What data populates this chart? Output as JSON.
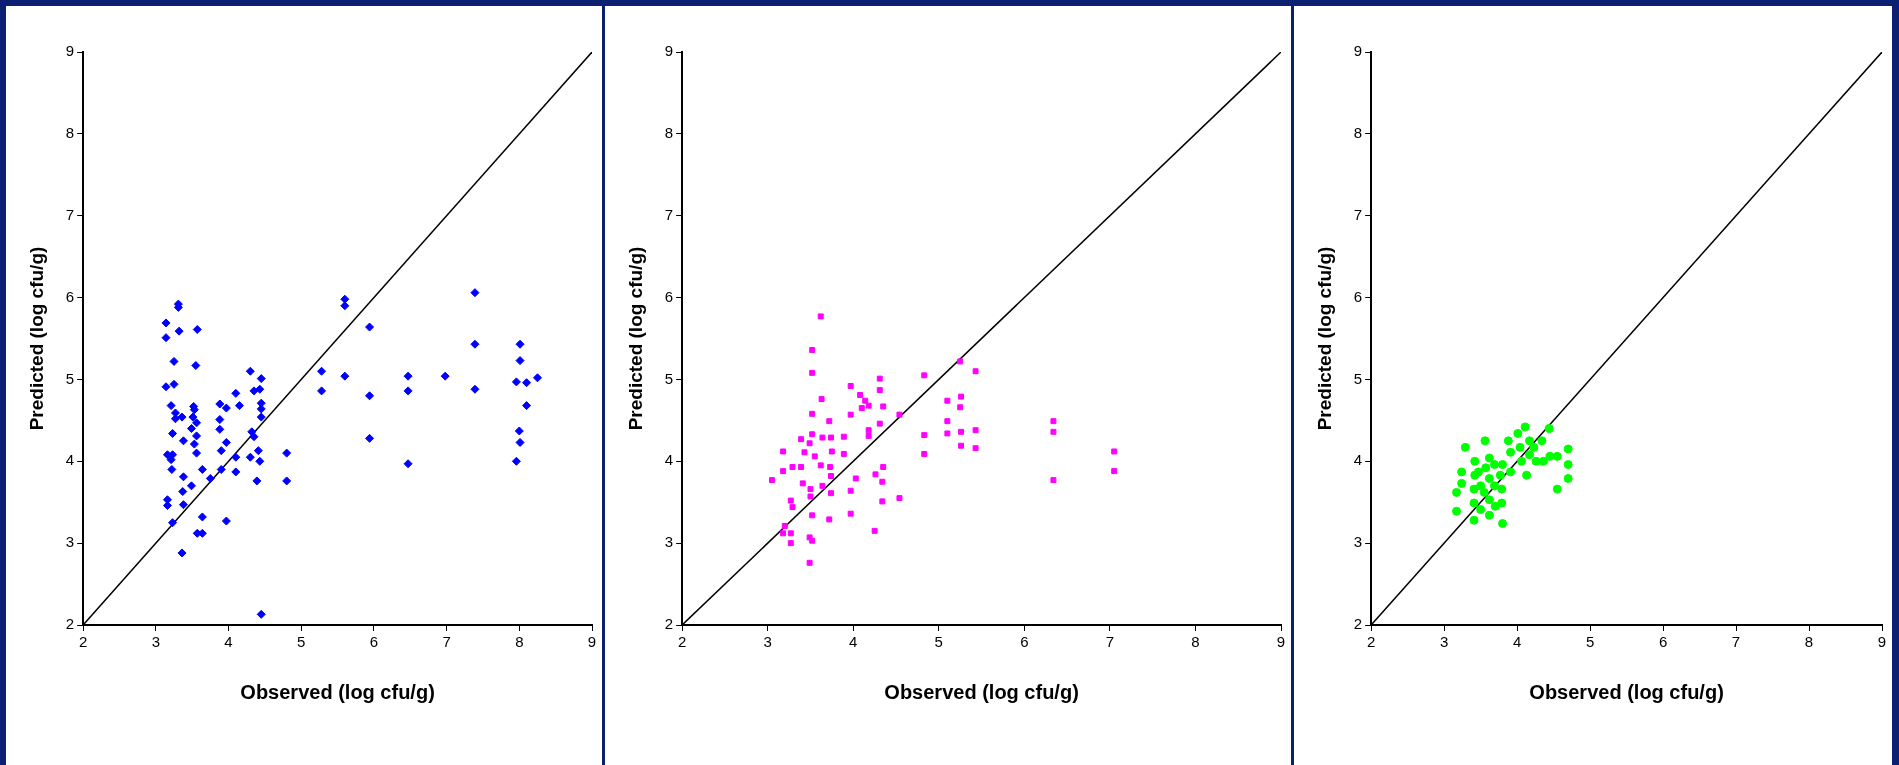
{
  "chart_data": [
    {
      "type": "scatter",
      "xlabel": "Observed (log cfu/g)",
      "ylabel": "Predicted (log cfu/g)",
      "xlim": [
        2,
        9
      ],
      "ylim": [
        2,
        9
      ],
      "xticks": [
        2,
        3,
        4,
        5,
        6,
        7,
        8,
        9
      ],
      "yticks": [
        2,
        3,
        4,
        5,
        6,
        7,
        8,
        9
      ],
      "grid": false,
      "legend": false,
      "marker": "diamond",
      "series": [
        {
          "type": "scatter",
          "color": "#0000ff",
          "x": [
            3.14,
            3.14,
            3.31,
            3.31,
            3.32,
            3.57,
            3.25,
            3.55,
            3.14,
            3.25,
            3.21,
            3.27,
            3.27,
            3.36,
            3.23,
            3.52,
            3.53,
            3.51,
            3.56,
            3.49,
            3.56,
            3.53,
            3.56,
            3.38,
            3.16,
            3.23,
            3.21,
            3.22,
            3.38,
            3.37,
            3.49,
            3.16,
            3.16,
            3.38,
            3.64,
            3.75,
            3.23,
            3.64,
            3.57,
            3.64,
            3.36,
            3.88,
            3.97,
            3.88,
            3.88,
            3.97,
            3.9,
            3.9,
            3.97,
            4.1,
            4.15,
            4.1,
            4.1,
            4.3,
            4.35,
            4.43,
            4.45,
            4.45,
            4.45,
            4.45,
            4.32,
            4.35,
            4.41,
            4.3,
            4.43,
            4.39,
            4.45,
            4.8,
            4.8,
            5.28,
            5.28,
            5.6,
            5.6,
            5.6,
            5.94,
            5.94,
            5.94,
            6.47,
            6.47,
            6.47,
            6.98,
            7.39,
            7.39,
            7.39,
            8.01,
            8.01,
            7.96,
            8.1,
            8.25,
            8.1,
            8.0,
            8.01,
            7.96
          ],
          "values": [
            5.69,
            5.51,
            5.92,
            5.88,
            5.59,
            5.61,
            5.22,
            5.17,
            4.91,
            4.94,
            4.68,
            4.59,
            4.52,
            4.54,
            4.34,
            4.67,
            4.63,
            4.54,
            4.47,
            4.4,
            4.31,
            4.21,
            4.1,
            4.25,
            4.08,
            4.08,
            4.02,
            3.9,
            3.81,
            3.63,
            3.7,
            3.53,
            3.46,
            3.47,
            3.9,
            3.79,
            3.25,
            3.32,
            3.12,
            3.12,
            2.88,
            4.7,
            4.65,
            4.51,
            4.39,
            4.23,
            4.13,
            3.9,
            3.27,
            4.83,
            4.68,
            4.05,
            3.87,
            5.1,
            4.86,
            4.88,
            5.01,
            4.71,
            4.64,
            4.54,
            4.36,
            4.3,
            4.13,
            4.05,
            4.0,
            3.76,
            2.13,
            4.1,
            3.76,
            5.1,
            4.86,
            5.98,
            5.9,
            5.04,
            5.64,
            4.8,
            4.28,
            5.04,
            4.86,
            3.97,
            5.04,
            6.06,
            5.43,
            4.88,
            5.43,
            5.23,
            4.97,
            4.96,
            5.02,
            4.68,
            4.37,
            4.23,
            4.0
          ]
        },
        {
          "type": "line",
          "color": "#000000",
          "marker": "none",
          "x": [
            2,
            9
          ],
          "values": [
            2,
            9
          ]
        }
      ]
    },
    {
      "type": "scatter",
      "xlabel": "Observed (log cfu/g)",
      "ylabel": "Predicted (log cfu/g)",
      "xlim": [
        2,
        9
      ],
      "ylim": [
        2,
        9
      ],
      "xticks": [
        2,
        3,
        4,
        5,
        6,
        7,
        8,
        9
      ],
      "yticks": [
        2,
        3,
        4,
        5,
        6,
        7,
        8,
        9
      ],
      "grid": false,
      "legend": false,
      "marker": "square",
      "series": [
        {
          "type": "scatter",
          "color": "#ff00ff",
          "x": [
            3.62,
            3.52,
            3.52,
            3.63,
            3.52,
            3.72,
            3.39,
            3.18,
            3.49,
            3.52,
            3.64,
            3.74,
            3.75,
            3.43,
            3.55,
            3.62,
            3.39,
            3.29,
            3.18,
            3.05,
            3.41,
            3.5,
            3.5,
            3.64,
            3.73,
            3.74,
            3.74,
            3.27,
            3.29,
            3.52,
            3.72,
            3.2,
            3.27,
            3.18,
            3.27,
            3.49,
            3.52,
            3.49,
            3.89,
            3.89,
            3.97,
            3.97,
            4.08,
            4.14,
            4.18,
            4.1,
            4.18,
            4.18,
            4.31,
            4.31,
            4.35,
            4.31,
            4.54,
            4.03,
            3.97,
            3.97,
            4.26,
            4.35,
            4.34,
            4.34,
            4.25,
            4.54,
            4.83,
            4.83,
            4.83,
            5.1,
            5.1,
            5.1,
            5.25,
            5.26,
            5.25,
            5.26,
            5.26,
            5.43,
            5.43,
            5.43,
            6.34,
            6.34,
            6.34,
            7.05,
            7.05
          ],
          "values": [
            5.77,
            5.36,
            5.08,
            4.76,
            4.58,
            4.49,
            4.27,
            4.12,
            4.22,
            4.33,
            4.29,
            4.29,
            4.12,
            4.11,
            4.06,
            3.95,
            3.93,
            3.93,
            3.88,
            3.77,
            3.73,
            3.66,
            3.57,
            3.7,
            3.93,
            3.82,
            3.61,
            3.52,
            3.44,
            3.34,
            3.29,
            3.21,
            3.12,
            3.12,
            3.0,
            3.07,
            3.03,
            2.76,
            4.3,
            4.09,
            4.92,
            4.57,
            4.81,
            4.74,
            4.68,
            4.65,
            4.38,
            4.31,
            5.01,
            4.87,
            4.67,
            4.46,
            4.57,
            3.79,
            3.64,
            3.36,
            3.84,
            3.93,
            3.75,
            3.51,
            3.15,
            3.55,
            5.05,
            4.32,
            4.09,
            4.74,
            4.49,
            4.34,
            5.22,
            4.79,
            4.66,
            4.36,
            4.19,
            5.1,
            4.38,
            4.16,
            4.49,
            4.36,
            3.77,
            4.12,
            3.88
          ]
        },
        {
          "type": "line",
          "color": "#000000",
          "marker": "none",
          "x": [
            2,
            9
          ],
          "values": [
            2,
            9
          ]
        }
      ]
    },
    {
      "type": "scatter",
      "xlabel": "Observed (log cfu/g)",
      "ylabel": "Predicted (log cfu/g)",
      "xlim": [
        2,
        9
      ],
      "ylim": [
        2,
        9
      ],
      "xticks": [
        2,
        3,
        4,
        5,
        6,
        7,
        8,
        9
      ],
      "yticks": [
        2,
        3,
        4,
        5,
        6,
        7,
        8,
        9
      ],
      "grid": false,
      "legend": false,
      "marker": "circle",
      "series": [
        {
          "type": "scatter",
          "color": "#00ff00",
          "x": [
            3.17,
            3.17,
            3.24,
            3.24,
            3.29,
            3.56,
            3.42,
            3.42,
            3.41,
            3.41,
            3.41,
            3.47,
            3.5,
            3.5,
            3.55,
            3.57,
            3.62,
            3.62,
            3.62,
            3.62,
            3.69,
            3.69,
            3.7,
            3.77,
            3.79,
            3.79,
            3.8,
            3.8,
            3.88,
            3.91,
            3.91,
            4.01,
            4.04,
            4.06,
            4.11,
            4.13,
            4.17,
            4.17,
            4.23,
            4.26,
            4.34,
            4.36,
            4.44,
            4.45,
            4.55,
            4.55,
            4.7,
            4.7,
            4.7
          ],
          "values": [
            3.62,
            3.39,
            3.87,
            3.73,
            4.17,
            4.25,
            4.0,
            3.83,
            3.66,
            3.49,
            3.28,
            3.87,
            3.7,
            3.41,
            3.62,
            3.92,
            4.04,
            3.79,
            3.53,
            3.34,
            3.96,
            3.7,
            3.45,
            3.83,
            3.66,
            3.49,
            3.24,
            3.96,
            4.25,
            3.87,
            4.11,
            4.34,
            4.17,
            4.0,
            4.42,
            3.83,
            4.25,
            4.08,
            4.17,
            4.0,
            4.25,
            4.0,
            4.4,
            4.06,
            4.06,
            3.66,
            4.15,
            3.96,
            3.79
          ]
        },
        {
          "type": "line",
          "color": "#000000",
          "marker": "none",
          "x": [
            2,
            9
          ],
          "values": [
            2,
            9
          ]
        }
      ]
    }
  ]
}
